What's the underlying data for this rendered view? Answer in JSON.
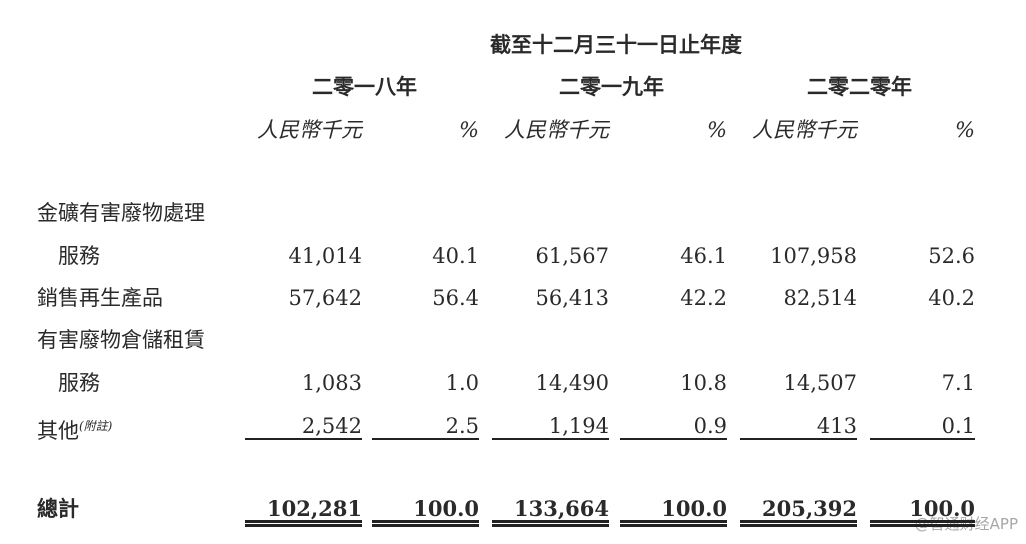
{
  "header": {
    "period": "截至十二月三十一日止年度",
    "years": [
      "二零一八年",
      "二零一九年",
      "二零二零年"
    ],
    "unit": "人民幣千元",
    "pct": "%"
  },
  "rows": [
    {
      "label": "金礦有害廢物處理",
      "values": [
        "",
        "",
        "",
        "",
        "",
        ""
      ]
    },
    {
      "label": "服務",
      "indent": true,
      "values": [
        "41,014",
        "40.1",
        "61,567",
        "46.1",
        "107,958",
        "52.6"
      ]
    },
    {
      "label": "銷售再生產品",
      "values": [
        "57,642",
        "56.4",
        "56,413",
        "42.2",
        "82,514",
        "40.2"
      ]
    },
    {
      "label": "有害廢物倉儲租賃",
      "values": [
        "",
        "",
        "",
        "",
        "",
        ""
      ]
    },
    {
      "label": "服務",
      "indent": true,
      "values": [
        "1,083",
        "1.0",
        "14,490",
        "10.8",
        "14,507",
        "7.1"
      ]
    },
    {
      "label": "其他",
      "note": "(附註)",
      "values": [
        "2,542",
        "2.5",
        "1,194",
        "0.9",
        "413",
        "0.1"
      ]
    }
  ],
  "total": {
    "label": "總計",
    "values": [
      "102,281",
      "100.0",
      "133,664",
      "100.0",
      "205,392",
      "100.0"
    ]
  },
  "watermark": "@智通财经APP"
}
